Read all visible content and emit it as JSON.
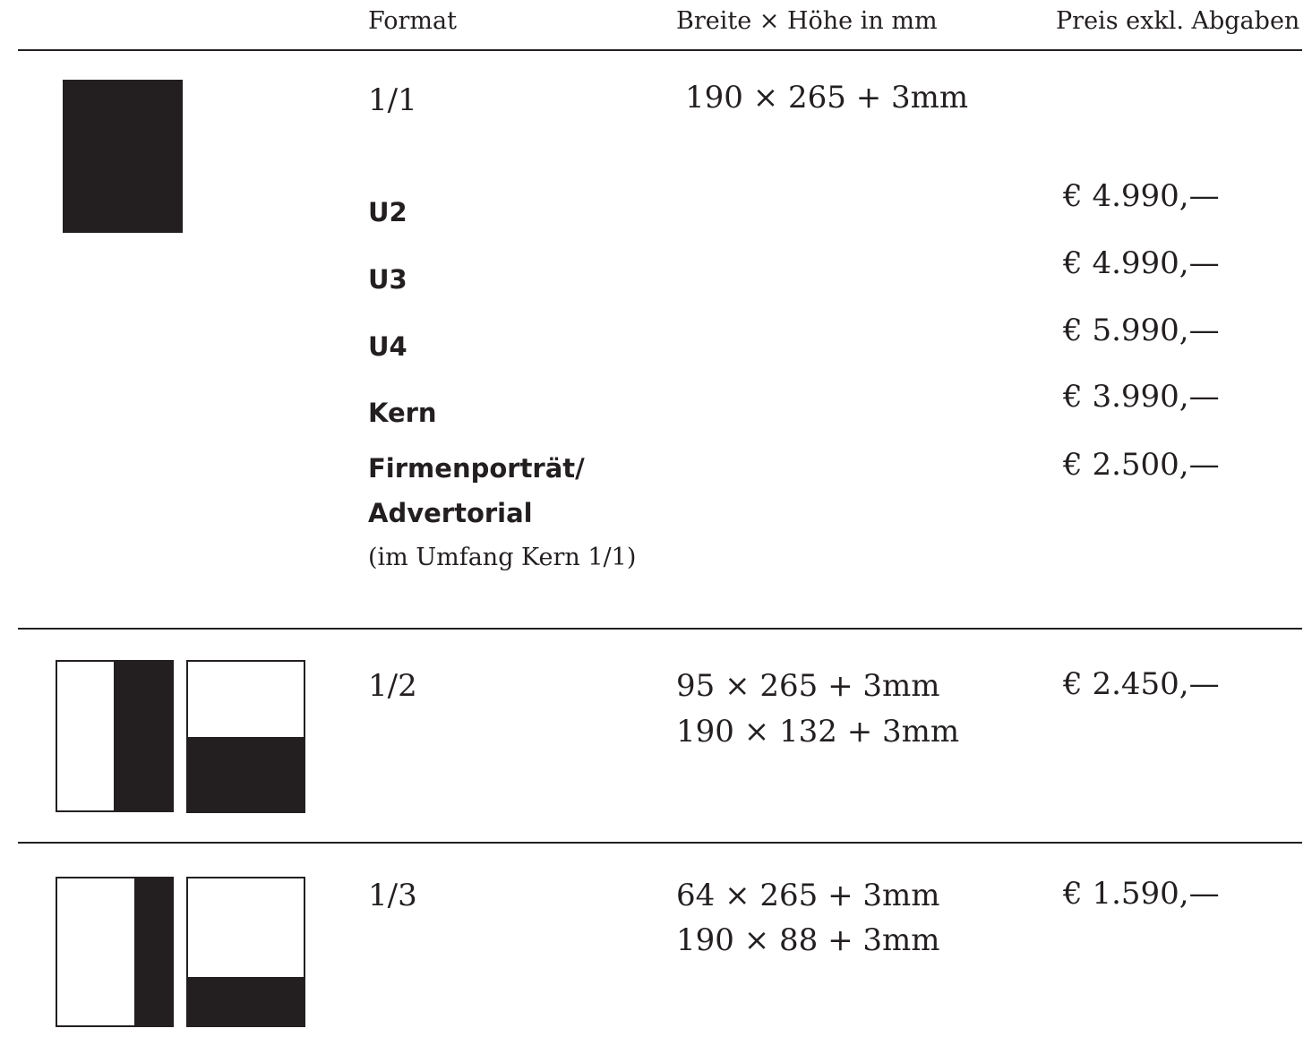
{
  "header": {
    "format": "Format",
    "dimensions": "Breite × Höhe in mm",
    "price": "Preis exkl. Abgaben"
  },
  "rows": [
    {
      "format": "1/1",
      "dimensions": [
        "190 × 265 + 3mm"
      ],
      "options": [
        {
          "label": "U2",
          "price": "€ 4.990,—"
        },
        {
          "label": "U3",
          "price": "€ 4.990,—"
        },
        {
          "label": "U4",
          "price": "€ 5.990,—"
        },
        {
          "label": "Kern",
          "price": "€ 3.990,—"
        },
        {
          "label_line1": "Firmenporträt/",
          "label_line2": "Advertorial",
          "note": "(im Umfang Kern 1/1)",
          "price": "€ 2.500,—"
        }
      ]
    },
    {
      "format": "1/2",
      "dimensions": [
        "95 × 265 + 3mm",
        "190 × 132 + 3mm"
      ],
      "price": "€ 2.450,—"
    },
    {
      "format": "1/3",
      "dimensions": [
        "64 × 265 + 3mm",
        "190 × 88 + 3mm"
      ],
      "price": "€ 1.590,—"
    }
  ]
}
